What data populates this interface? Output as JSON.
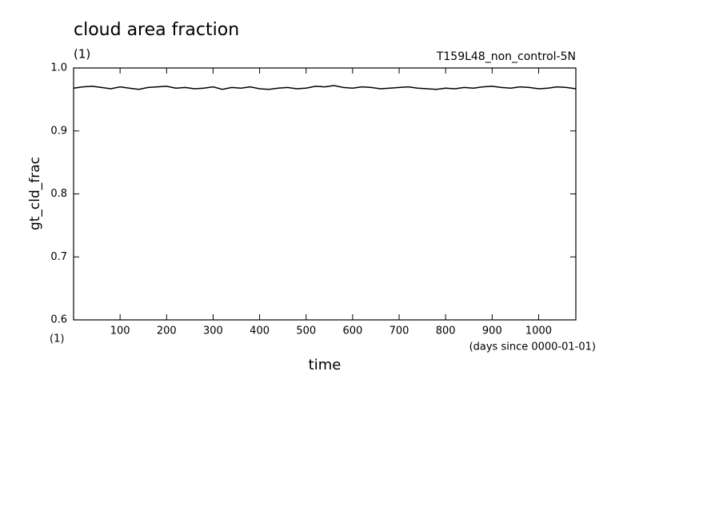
{
  "chart_data": {
    "type": "line",
    "title": "cloud area fraction",
    "subtitle": "(1)",
    "annotation": "T159L48_non_control-5N",
    "y_label": "gt_cld_frac",
    "y_units": "(1)",
    "x_label": "time",
    "x_units": "(days since 0000-01-01)",
    "color": "#000000",
    "xlim": [
      0,
      1080
    ],
    "xticks": [
      100,
      200,
      300,
      400,
      500,
      600,
      700,
      800,
      900,
      1000
    ],
    "ylim": [
      0.6,
      1.0
    ],
    "yticks": [
      0.6,
      0.7,
      0.8,
      0.9,
      {
        "value": 1.0,
        "label": "1.0"
      }
    ],
    "x": [
      0,
      20,
      40,
      60,
      80,
      100,
      120,
      140,
      160,
      180,
      200,
      220,
      240,
      260,
      280,
      300,
      320,
      340,
      360,
      380,
      400,
      420,
      440,
      460,
      480,
      500,
      520,
      540,
      560,
      580,
      600,
      620,
      640,
      660,
      680,
      700,
      720,
      740,
      760,
      780,
      800,
      820,
      840,
      860,
      880,
      900,
      920,
      940,
      960,
      980,
      1000,
      1020,
      1040,
      1060,
      1080
    ],
    "values": [
      0.968,
      0.97,
      0.971,
      0.969,
      0.967,
      0.97,
      0.968,
      0.966,
      0.969,
      0.97,
      0.971,
      0.968,
      0.969,
      0.967,
      0.968,
      0.97,
      0.966,
      0.969,
      0.968,
      0.97,
      0.967,
      0.966,
      0.968,
      0.969,
      0.967,
      0.968,
      0.971,
      0.97,
      0.972,
      0.969,
      0.968,
      0.97,
      0.969,
      0.967,
      0.968,
      0.969,
      0.97,
      0.968,
      0.967,
      0.966,
      0.968,
      0.967,
      0.969,
      0.968,
      0.97,
      0.971,
      0.969,
      0.968,
      0.97,
      0.969,
      0.967,
      0.968,
      0.97,
      0.969,
      0.967
    ]
  }
}
